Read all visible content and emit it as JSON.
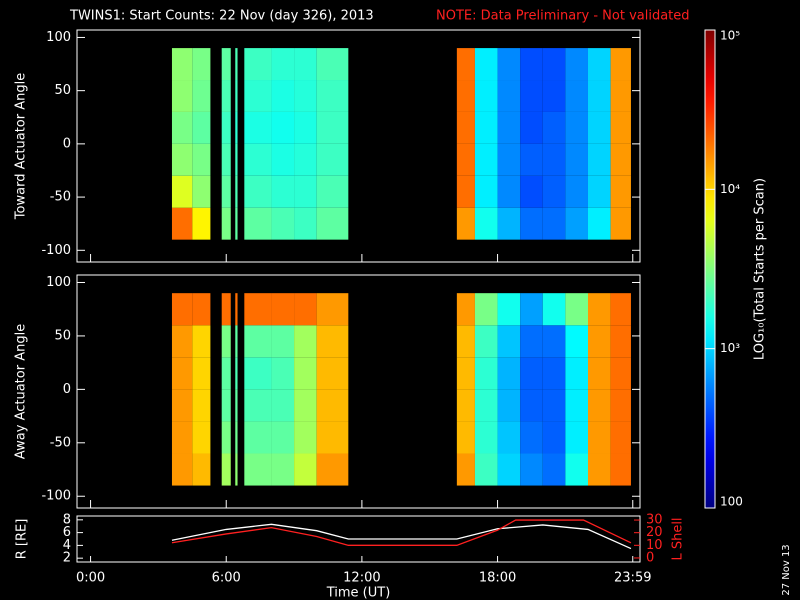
{
  "stamp": "27 Nov 13",
  "chart_data": [
    {
      "type": "heatmap",
      "title": "TWINS1: Start Counts: 22 Nov (day 326), 2013",
      "note": "NOTE: Data Preliminary - Not validated",
      "ylabel": "Toward Actuator Angle",
      "xlim": [
        -0.6,
        24.3
      ],
      "ylim": [
        -111,
        107
      ],
      "yticks": [
        -100,
        -50,
        0,
        50,
        100
      ],
      "xbins": [
        3.6,
        4.5,
        5.3,
        5.8,
        6.2,
        6.4,
        6.5,
        6.8,
        8,
        9,
        10,
        11.4,
        16.2,
        17,
        18,
        19,
        20,
        21,
        22,
        23,
        23.9
      ],
      "ybins": [
        -90,
        -60,
        -30,
        0,
        30,
        60,
        90
      ],
      "values": [
        [
          20000,
          8000,
          null,
          3000,
          null,
          2500,
          null,
          2500,
          2200,
          2000,
          2500,
          null,
          15000,
          1500,
          800,
          500,
          500,
          700,
          1200,
          15000
        ],
        [
          6000,
          3500,
          null,
          2500,
          null,
          2200,
          null,
          2000,
          1800,
          1800,
          2200,
          null,
          20000,
          1200,
          600,
          400,
          450,
          600,
          1000,
          15000
        ],
        [
          3500,
          3000,
          null,
          2200,
          null,
          2000,
          null,
          1800,
          1600,
          1700,
          2000,
          null,
          20000,
          1200,
          600,
          450,
          450,
          600,
          1000,
          15000
        ],
        [
          3000,
          2500,
          null,
          2000,
          null,
          1800,
          null,
          1600,
          1500,
          1600,
          2000,
          null,
          20000,
          1200,
          600,
          400,
          450,
          600,
          1000,
          15000
        ],
        [
          3500,
          2800,
          null,
          2200,
          null,
          2000,
          null,
          1800,
          1600,
          1700,
          2000,
          null,
          20000,
          1200,
          600,
          400,
          400,
          600,
          1000,
          15000
        ],
        [
          3500,
          3000,
          null,
          2500,
          null,
          2200,
          null,
          2000,
          1800,
          1800,
          2200,
          null,
          20000,
          1200,
          600,
          400,
          400,
          600,
          1000,
          15000
        ]
      ],
      "zscale": "log",
      "zlim": [
        100,
        100000
      ],
      "zticks": [
        100,
        {
          "value": 1000,
          "label": "10³"
        },
        {
          "value": 10000,
          "label": "10⁴"
        },
        {
          "value": 100000,
          "label": "10⁵"
        }
      ],
      "zlabel": "LOG₁₀(Total Starts per Scan)"
    },
    {
      "type": "heatmap",
      "ylabel": "Away Actuator Angle",
      "xlim": [
        -0.6,
        24.3
      ],
      "ylim": [
        -111,
        107
      ],
      "yticks": [
        -100,
        -50,
        0,
        50,
        100
      ],
      "xbins": [
        3.6,
        4.5,
        5.3,
        5.8,
        6.2,
        6.4,
        6.5,
        6.8,
        8,
        9,
        10,
        11.4,
        16.2,
        17,
        18,
        19,
        20,
        21,
        22,
        23,
        23.9
      ],
      "ybins": [
        -90,
        -60,
        -30,
        0,
        30,
        60,
        90
      ],
      "values": [
        [
          15000,
          12000,
          null,
          4000,
          null,
          3500,
          null,
          3000,
          3000,
          5000,
          15000,
          null,
          15000,
          2000,
          1000,
          600,
          500,
          1500,
          15000,
          20000
        ],
        [
          15000,
          10000,
          null,
          3000,
          null,
          2800,
          null,
          2500,
          2500,
          4000,
          12000,
          null,
          12000,
          1800,
          900,
          500,
          450,
          1200,
          15000,
          20000
        ],
        [
          15000,
          10000,
          null,
          2500,
          null,
          2500,
          null,
          2200,
          2200,
          4000,
          12000,
          null,
          12000,
          1800,
          800,
          450,
          450,
          1200,
          15000,
          20000
        ],
        [
          15000,
          10000,
          null,
          2500,
          null,
          2200,
          null,
          2000,
          2200,
          4000,
          12000,
          null,
          12000,
          1800,
          800,
          450,
          450,
          1200,
          15000,
          20000
        ],
        [
          15000,
          10000,
          null,
          3000,
          null,
          2500,
          null,
          2500,
          2500,
          4000,
          12000,
          null,
          12000,
          2000,
          900,
          500,
          500,
          1300,
          15000,
          20000
        ],
        [
          20000,
          20000,
          null,
          20000,
          null,
          20000,
          null,
          20000,
          20000,
          20000,
          15000,
          null,
          15000,
          3000,
          1500,
          700,
          1500,
          3000,
          15000,
          20000
        ]
      ],
      "zscale": "log",
      "zlim": [
        100,
        100000
      ]
    },
    {
      "type": "line",
      "xlabel": "Time (UT)",
      "ylabel": "R [RE]",
      "y2label": "L Shell",
      "xlim": [
        -0.6,
        24.3
      ],
      "xticks": [
        {
          "value": 0,
          "label": "0:00"
        },
        {
          "value": 6,
          "label": "6:00"
        },
        {
          "value": 12,
          "label": "12:00"
        },
        {
          "value": 18,
          "label": "18:00"
        },
        {
          "value": 23.98,
          "label": "23:59"
        }
      ],
      "ylim": [
        1.4,
        8.6
      ],
      "yticks": [
        2,
        4,
        6,
        8
      ],
      "y2lim": [
        -3.2,
        33.2
      ],
      "y2ticks": [
        0,
        10,
        20,
        30
      ],
      "y2color": "#ff2020",
      "series": [
        {
          "color": "#ffffff",
          "x": [
            3.6,
            6,
            8,
            10,
            11.4,
            16.2,
            18,
            20,
            22,
            23.9
          ],
          "values": [
            4.8,
            6.5,
            7.3,
            6.3,
            5,
            5,
            6.6,
            7.2,
            6.5,
            3.5
          ]
        },
        {
          "color": "#ff2020",
          "axis": "y2",
          "x": [
            3.6,
            6,
            8,
            10,
            11.4,
            16.2,
            18,
            18.8,
            21.8,
            23.9
          ],
          "values": [
            12,
            19,
            24,
            17,
            10,
            10,
            22,
            30,
            30,
            12
          ]
        }
      ]
    }
  ]
}
